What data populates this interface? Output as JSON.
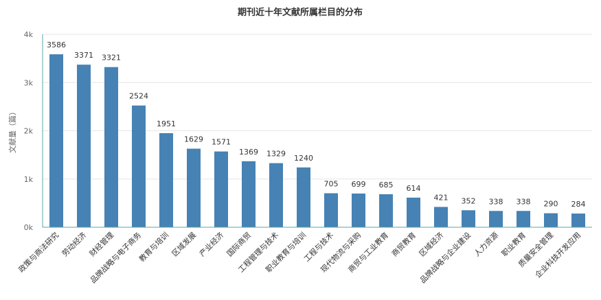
{
  "chart_data": {
    "type": "bar",
    "title": "期刊近十年文献所属栏目的分布",
    "xlabel": "",
    "ylabel": "文献量（篇）",
    "ylim": [
      0,
      4000
    ],
    "yticks": [
      0,
      1000,
      2000,
      3000,
      4000
    ],
    "ytick_labels": [
      "0k",
      "1k",
      "2k",
      "3k",
      "4k"
    ],
    "grid": true,
    "bar_color": "#4682b4",
    "categories": [
      "政策与商法研究",
      "劳动经济",
      "财经管理",
      "品牌战略与电子商务",
      "教育与培训",
      "区域发展",
      "产业经济",
      "国际商贸",
      "工程管理与技术",
      "职业教育与培训",
      "工程与技术",
      "现代物流与采购",
      "商贸与工业教育",
      "商贸教育",
      "区域经济",
      "品牌战略与企业建设",
      "人力资源",
      "职业教育",
      "质量安全管理",
      "企业科技开发应用"
    ],
    "values": [
      3586,
      3371,
      3321,
      2524,
      1951,
      1629,
      1571,
      1369,
      1329,
      1240,
      705,
      699,
      685,
      614,
      421,
      352,
      338,
      338,
      290,
      284
    ]
  }
}
